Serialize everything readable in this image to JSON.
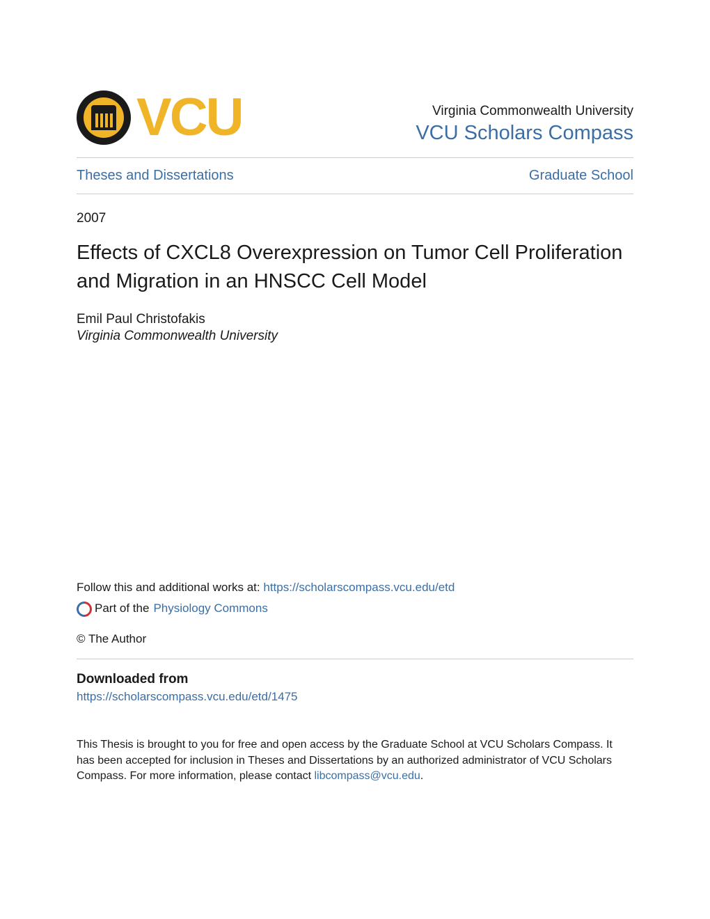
{
  "header": {
    "logo_text": "VCU",
    "university_name": "Virginia Commonwealth University",
    "repository_name": "VCU Scholars Compass"
  },
  "nav": {
    "left_link": "Theses and Dissertations",
    "right_link": "Graduate School"
  },
  "article": {
    "year": "2007",
    "title": "Effects of CXCL8 Overexpression on Tumor Cell Proliferation and Migration in an HNSCC Cell Model",
    "author": "Emil Paul Christofakis",
    "affiliation": "Virginia Commonwealth University"
  },
  "follow": {
    "prefix": "Follow this and additional works at: ",
    "url": "https://scholarscompass.vcu.edu/etd"
  },
  "part": {
    "prefix": "Part of the ",
    "link": "Physiology Commons"
  },
  "copyright": "© The Author",
  "download": {
    "heading": "Downloaded from",
    "url": "https://scholarscompass.vcu.edu/etd/1475"
  },
  "footer": {
    "text_before": "This Thesis is brought to you for free and open access by the Graduate School at VCU Scholars Compass. It has been accepted for inclusion in Theses and Dissertations by an authorized administrator of VCU Scholars Compass. For more information, please contact ",
    "email": "libcompass@vcu.edu",
    "text_after": "."
  },
  "colors": {
    "link": "#3b6ea5",
    "gold": "#f0b429",
    "text": "#1a1a1a",
    "divider": "#cccccc"
  }
}
